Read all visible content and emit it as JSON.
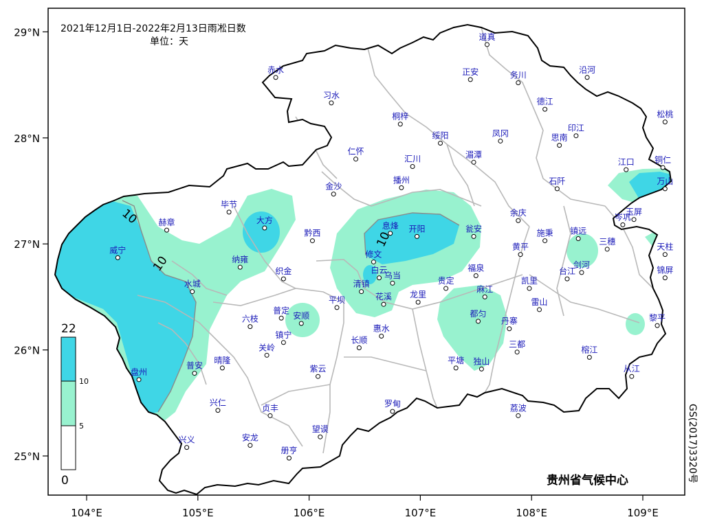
{
  "title": {
    "line1": "2021年12月1日-2022年2月13日雨凇日数",
    "line2": "单位：天"
  },
  "credit": "贵州省气候中心",
  "map_number": "GS(2017)3320号",
  "axes": {
    "lon_ticks": [
      "104°E",
      "105°E",
      "106°E",
      "107°E",
      "108°E",
      "109°E"
    ],
    "lat_ticks": [
      "25°N",
      "26°N",
      "27°N",
      "28°N",
      "29°N"
    ],
    "lon_values": [
      104,
      105,
      106,
      107,
      108,
      109
    ],
    "lat_values": [
      25,
      26,
      27,
      28,
      29
    ],
    "lon_range": [
      103.63,
      109.63
    ],
    "lat_range": [
      24.64,
      29.21
    ]
  },
  "colors": {
    "level_5_10": "#98f2cf",
    "level_10_22": "#3fd6e6",
    "boundary": "#000000",
    "county_lines": "#b8b8b8",
    "station_label": "#1a1ab8"
  },
  "legend": {
    "levels": [
      "22",
      "10",
      "5",
      "0"
    ],
    "level_values": [
      22,
      10,
      5,
      0
    ]
  },
  "contour_labels": [
    "10",
    "10",
    "10"
  ],
  "stations": [
    {
      "name": "道真",
      "lon": 107.6,
      "lat": 28.88
    },
    {
      "name": "赤水",
      "lon": 105.7,
      "lat": 28.57
    },
    {
      "name": "正安",
      "lon": 107.45,
      "lat": 28.55
    },
    {
      "name": "务川",
      "lon": 107.88,
      "lat": 28.52
    },
    {
      "name": "沿河",
      "lon": 108.5,
      "lat": 28.57
    },
    {
      "name": "习水",
      "lon": 106.2,
      "lat": 28.33
    },
    {
      "name": "德江",
      "lon": 108.12,
      "lat": 28.27
    },
    {
      "name": "桐梓",
      "lon": 106.82,
      "lat": 28.13
    },
    {
      "name": "松桃",
      "lon": 109.2,
      "lat": 28.15
    },
    {
      "name": "绥阳",
      "lon": 107.18,
      "lat": 27.95
    },
    {
      "name": "凤冈",
      "lon": 107.72,
      "lat": 27.97
    },
    {
      "name": "印江",
      "lon": 108.4,
      "lat": 28.02
    },
    {
      "name": "思南",
      "lon": 108.25,
      "lat": 27.93
    },
    {
      "name": "仁怀",
      "lon": 106.42,
      "lat": 27.8
    },
    {
      "name": "汇川",
      "lon": 106.93,
      "lat": 27.73
    },
    {
      "name": "湄潭",
      "lon": 107.48,
      "lat": 27.77
    },
    {
      "name": "江口",
      "lon": 108.85,
      "lat": 27.7
    },
    {
      "name": "铜仁",
      "lon": 109.18,
      "lat": 27.72
    },
    {
      "name": "播州",
      "lon": 106.83,
      "lat": 27.53
    },
    {
      "name": "金沙",
      "lon": 106.22,
      "lat": 27.47
    },
    {
      "name": "石阡",
      "lon": 108.23,
      "lat": 27.52
    },
    {
      "name": "万山",
      "lon": 109.2,
      "lat": 27.52
    },
    {
      "name": "毕节",
      "lon": 105.28,
      "lat": 27.3
    },
    {
      "name": "余庆",
      "lon": 107.88,
      "lat": 27.22
    },
    {
      "name": "玉屏",
      "lon": 108.92,
      "lat": 27.23
    },
    {
      "name": "岑巩",
      "lon": 108.82,
      "lat": 27.18
    },
    {
      "name": "赫章",
      "lon": 104.72,
      "lat": 27.13
    },
    {
      "name": "大方",
      "lon": 105.6,
      "lat": 27.15
    },
    {
      "name": "息烽",
      "lon": 106.73,
      "lat": 27.1
    },
    {
      "name": "开阳",
      "lon": 106.97,
      "lat": 27.07
    },
    {
      "name": "瓮安",
      "lon": 107.48,
      "lat": 27.07
    },
    {
      "name": "施秉",
      "lon": 108.12,
      "lat": 27.03
    },
    {
      "name": "镇远",
      "lon": 108.42,
      "lat": 27.05
    },
    {
      "name": "黔西",
      "lon": 106.03,
      "lat": 27.03
    },
    {
      "name": "三穗",
      "lon": 108.68,
      "lat": 26.95
    },
    {
      "name": "威宁",
      "lon": 104.28,
      "lat": 26.87
    },
    {
      "name": "修文",
      "lon": 106.58,
      "lat": 26.83
    },
    {
      "name": "纳雍",
      "lon": 105.38,
      "lat": 26.78
    },
    {
      "name": "黄平",
      "lon": 107.9,
      "lat": 26.9
    },
    {
      "name": "天柱",
      "lon": 109.2,
      "lat": 26.9
    },
    {
      "name": "剑河",
      "lon": 108.45,
      "lat": 26.73
    },
    {
      "name": "台江",
      "lon": 108.32,
      "lat": 26.67
    },
    {
      "name": "白云",
      "lon": 106.63,
      "lat": 26.68
    },
    {
      "name": "乌当",
      "lon": 106.75,
      "lat": 26.63
    },
    {
      "name": "福泉",
      "lon": 107.5,
      "lat": 26.7
    },
    {
      "name": "织金",
      "lon": 105.77,
      "lat": 26.67
    },
    {
      "name": "水城",
      "lon": 104.95,
      "lat": 26.55
    },
    {
      "name": "贵定",
      "lon": 107.23,
      "lat": 26.58
    },
    {
      "name": "凯里",
      "lon": 107.98,
      "lat": 26.58
    },
    {
      "name": "清镇",
      "lon": 106.47,
      "lat": 26.55
    },
    {
      "name": "锦屏",
      "lon": 109.2,
      "lat": 26.68
    },
    {
      "name": "麻江",
      "lon": 107.58,
      "lat": 26.5
    },
    {
      "name": "龙里",
      "lon": 106.98,
      "lat": 26.45
    },
    {
      "name": "花溪",
      "lon": 106.67,
      "lat": 26.43
    },
    {
      "name": "雷山",
      "lon": 108.07,
      "lat": 26.38
    },
    {
      "name": "平坝",
      "lon": 106.25,
      "lat": 26.4
    },
    {
      "name": "都匀",
      "lon": 107.52,
      "lat": 26.27
    },
    {
      "name": "普定",
      "lon": 105.75,
      "lat": 26.3
    },
    {
      "name": "安顺",
      "lon": 105.93,
      "lat": 26.25
    },
    {
      "name": "六枝",
      "lon": 105.47,
      "lat": 26.22
    },
    {
      "name": "丹寨",
      "lon": 107.8,
      "lat": 26.2
    },
    {
      "name": "黎平",
      "lon": 109.13,
      "lat": 26.23
    },
    {
      "name": "惠水",
      "lon": 106.65,
      "lat": 26.13
    },
    {
      "name": "镇宁",
      "lon": 105.77,
      "lat": 26.07
    },
    {
      "name": "长顺",
      "lon": 106.45,
      "lat": 26.02
    },
    {
      "name": "关岭",
      "lon": 105.62,
      "lat": 25.95
    },
    {
      "name": "三都",
      "lon": 107.87,
      "lat": 25.98
    },
    {
      "name": "榕江",
      "lon": 108.52,
      "lat": 25.93
    },
    {
      "name": "平塘",
      "lon": 107.32,
      "lat": 25.83
    },
    {
      "name": "独山",
      "lon": 107.55,
      "lat": 25.82
    },
    {
      "name": "盘州",
      "lon": 104.47,
      "lat": 25.72
    },
    {
      "name": "普安",
      "lon": 104.97,
      "lat": 25.78
    },
    {
      "name": "晴隆",
      "lon": 105.22,
      "lat": 25.83
    },
    {
      "name": "紫云",
      "lon": 106.08,
      "lat": 25.75
    },
    {
      "name": "从江",
      "lon": 108.9,
      "lat": 25.75
    },
    {
      "name": "兴仁",
      "lon": 105.18,
      "lat": 25.43
    },
    {
      "name": "贞丰",
      "lon": 105.65,
      "lat": 25.38
    },
    {
      "name": "罗甸",
      "lon": 106.75,
      "lat": 25.42
    },
    {
      "name": "荔波",
      "lon": 107.88,
      "lat": 25.38
    },
    {
      "name": "望谟",
      "lon": 106.1,
      "lat": 25.18
    },
    {
      "name": "安龙",
      "lon": 105.47,
      "lat": 25.1
    },
    {
      "name": "兴义",
      "lon": 104.9,
      "lat": 25.08
    },
    {
      "name": "册亨",
      "lon": 105.82,
      "lat": 24.98
    }
  ]
}
